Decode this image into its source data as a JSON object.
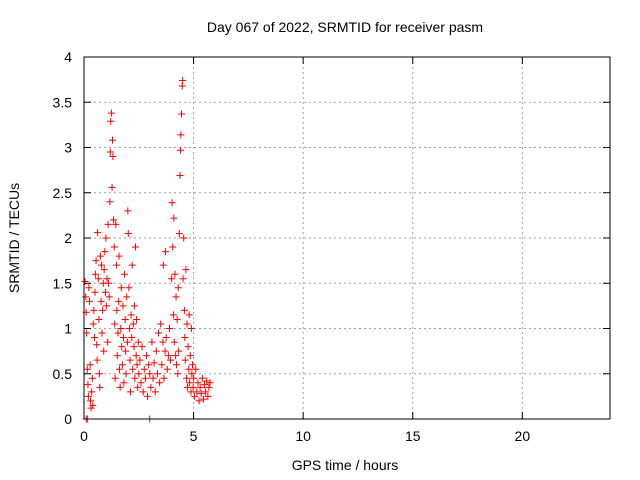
{
  "chart_data": {
    "type": "scatter",
    "title": "Day 067 of 2022, SRMTID for receiver pasm",
    "xlabel": "GPS time / hours",
    "ylabel": "SRMTID / TECUs",
    "xlim": [
      0,
      24
    ],
    "ylim": [
      0,
      4
    ],
    "xticks": [
      0,
      5,
      10,
      15,
      20
    ],
    "yticks": [
      0,
      0.5,
      1,
      1.5,
      2,
      2.5,
      3,
      3.5,
      4
    ],
    "ytick_labels": [
      "0",
      "0.5",
      "1",
      "1.5",
      "2",
      "2.5",
      "3",
      "3.5",
      "4"
    ],
    "grid": true,
    "marker": "+",
    "color": "#ff0000",
    "series": [
      {
        "points": [
          [
            0.05,
            1.52
          ],
          [
            0.08,
            1.35
          ],
          [
            0.1,
            1.18
          ],
          [
            0.12,
            0.95
          ],
          [
            0.15,
            0.55
          ],
          [
            0.18,
            0.38
          ],
          [
            0.2,
            0.25
          ],
          [
            0.22,
            1.45
          ],
          [
            0.25,
            1.3
          ],
          [
            0.28,
            0.6
          ],
          [
            0.3,
            0.2
          ],
          [
            0.32,
            0.12
          ],
          [
            0.35,
            0.3
          ],
          [
            0.38,
            0.45
          ],
          [
            0.4,
            0.15
          ],
          [
            0.42,
            1.05
          ],
          [
            0.45,
            1.2
          ],
          [
            0.48,
            0.9
          ],
          [
            0.5,
            1.4
          ],
          [
            0.52,
            1.6
          ],
          [
            0.55,
            1.75
          ],
          [
            0.58,
            0.82
          ],
          [
            0.6,
            0.65
          ],
          [
            0.62,
            2.06
          ],
          [
            0.65,
            1.55
          ],
          [
            0.68,
            1.1
          ],
          [
            0.7,
            0.5
          ],
          [
            0.72,
            0.35
          ],
          [
            0.75,
            1.8
          ],
          [
            0.78,
            1.3
          ],
          [
            0.8,
            1.7
          ],
          [
            0.82,
            0.95
          ],
          [
            0.85,
            1.2
          ],
          [
            0.88,
            1.5
          ],
          [
            0.9,
            0.75
          ],
          [
            0.92,
            1.65
          ],
          [
            0.95,
            1.85
          ],
          [
            0.98,
            1.4
          ],
          [
            1.0,
            2.0
          ],
          [
            1.02,
            1.25
          ],
          [
            1.05,
            1.55
          ],
          [
            1.08,
            0.85
          ],
          [
            1.1,
            2.15
          ],
          [
            1.12,
            1.5
          ],
          [
            1.15,
            1.35
          ],
          [
            1.18,
            2.4
          ],
          [
            1.2,
            2.95
          ],
          [
            1.22,
            3.29
          ],
          [
            1.25,
            3.38
          ],
          [
            1.28,
            2.56
          ],
          [
            1.3,
            3.08
          ],
          [
            1.32,
            2.9
          ],
          [
            1.35,
            2.2
          ],
          [
            1.38,
            1.9
          ],
          [
            1.4,
            1.05
          ],
          [
            1.42,
            0.45
          ],
          [
            1.45,
            2.15
          ],
          [
            1.48,
            1.7
          ],
          [
            1.5,
            1.2
          ],
          [
            1.52,
            0.7
          ],
          [
            1.55,
            0.95
          ],
          [
            1.58,
            1.3
          ],
          [
            1.6,
            1.8
          ],
          [
            1.62,
            0.55
          ],
          [
            1.65,
            0.35
          ],
          [
            1.68,
            1.0
          ],
          [
            1.7,
            1.45
          ],
          [
            1.72,
            0.8
          ],
          [
            1.75,
            0.6
          ],
          [
            1.78,
            1.25
          ],
          [
            1.8,
            0.9
          ],
          [
            1.82,
            0.4
          ],
          [
            1.85,
            1.6
          ],
          [
            1.88,
            1.1
          ],
          [
            1.9,
            0.75
          ],
          [
            1.92,
            0.5
          ],
          [
            1.95,
            1.35
          ],
          [
            1.98,
            0.85
          ],
          [
            2.0,
            2.3
          ],
          [
            2.02,
            2.05
          ],
          [
            2.05,
            1.45
          ],
          [
            2.08,
            1.0
          ],
          [
            2.1,
            0.65
          ],
          [
            2.12,
            0.3
          ],
          [
            2.15,
            1.15
          ],
          [
            2.18,
            0.9
          ],
          [
            2.2,
            1.7
          ],
          [
            2.22,
            0.55
          ],
          [
            2.25,
            1.05
          ],
          [
            2.28,
            0.8
          ],
          [
            2.3,
            1.25
          ],
          [
            2.32,
            0.45
          ],
          [
            2.35,
            1.9
          ],
          [
            2.38,
            0.7
          ],
          [
            2.4,
            1.1
          ],
          [
            2.42,
            0.6
          ],
          [
            2.45,
            0.35
          ],
          [
            2.48,
            0.85
          ],
          [
            2.5,
            0.5
          ],
          [
            2.55,
            0.65
          ],
          [
            2.6,
            0.4
          ],
          [
            2.65,
            0.8
          ],
          [
            2.7,
            0.3
          ],
          [
            2.75,
            0.55
          ],
          [
            2.8,
            0.45
          ],
          [
            2.85,
            0.7
          ],
          [
            2.9,
            0.25
          ],
          [
            2.95,
            0.6
          ],
          [
            3.0,
            0.5
          ],
          [
            3.05,
            0.35
          ],
          [
            3.1,
            0.85
          ],
          [
            3.15,
            0.45
          ],
          [
            3.2,
            0.62
          ],
          [
            3.25,
            0.3
          ],
          [
            3.3,
            0.75
          ],
          [
            3.35,
            0.5
          ],
          [
            3.4,
            0.95
          ],
          [
            3.45,
            0.4
          ],
          [
            3.5,
            1.05
          ],
          [
            3.55,
            0.6
          ],
          [
            3.6,
            0.85
          ],
          [
            3.62,
            1.7
          ],
          [
            3.65,
            0.45
          ],
          [
            3.7,
            0.75
          ],
          [
            3.72,
            1.85
          ],
          [
            3.75,
            0.9
          ],
          [
            3.8,
            0.55
          ],
          [
            3.85,
            0.7
          ],
          [
            3.9,
            1.0
          ],
          [
            3.95,
            0.65
          ],
          [
            4.0,
            1.55
          ],
          [
            4.02,
            2.39
          ],
          [
            4.05,
            1.9
          ],
          [
            4.08,
            1.15
          ],
          [
            4.1,
            2.22
          ],
          [
            4.12,
            0.85
          ],
          [
            4.15,
            1.6
          ],
          [
            4.18,
            0.7
          ],
          [
            4.2,
            1.35
          ],
          [
            4.22,
            0.6
          ],
          [
            4.25,
            1.1
          ],
          [
            4.28,
            0.5
          ],
          [
            4.3,
            1.45
          ],
          [
            4.32,
            0.75
          ],
          [
            4.35,
            2.05
          ],
          [
            4.38,
            2.69
          ],
          [
            4.4,
            2.97
          ],
          [
            4.42,
            3.14
          ],
          [
            4.45,
            3.37
          ],
          [
            4.48,
            3.68
          ],
          [
            4.5,
            3.74
          ],
          [
            4.52,
            1.55
          ],
          [
            4.55,
            2.0
          ],
          [
            4.58,
            1.2
          ],
          [
            4.6,
            0.9
          ],
          [
            4.62,
            0.65
          ],
          [
            4.65,
            1.65
          ],
          [
            4.68,
            0.45
          ],
          [
            4.7,
            1.05
          ],
          [
            4.72,
            0.35
          ],
          [
            4.75,
            0.8
          ],
          [
            4.78,
            0.55
          ],
          [
            4.8,
            1.15
          ],
          [
            4.82,
            0.4
          ],
          [
            4.85,
            0.7
          ],
          [
            4.88,
            0.3
          ],
          [
            4.9,
            1.0
          ],
          [
            4.92,
            0.5
          ],
          [
            4.95,
            0.6
          ],
          [
            4.98,
            0.35
          ],
          [
            5.0,
            0.45
          ],
          [
            5.05,
            0.25
          ],
          [
            5.1,
            0.55
          ],
          [
            5.15,
            0.3
          ],
          [
            5.2,
            0.4
          ],
          [
            5.25,
            0.2
          ],
          [
            5.3,
            0.35
          ],
          [
            5.35,
            0.28
          ],
          [
            5.4,
            0.45
          ],
          [
            5.45,
            0.22
          ],
          [
            5.5,
            0.38
          ],
          [
            5.55,
            0.3
          ],
          [
            5.6,
            0.42
          ],
          [
            5.65,
            0.25
          ],
          [
            5.7,
            0.35
          ],
          [
            5.75,
            0.4
          ],
          [
            0.1,
            0.0
          ],
          [
            0.15,
            0.0
          ],
          [
            3.0,
            0.0
          ]
        ]
      }
    ]
  }
}
